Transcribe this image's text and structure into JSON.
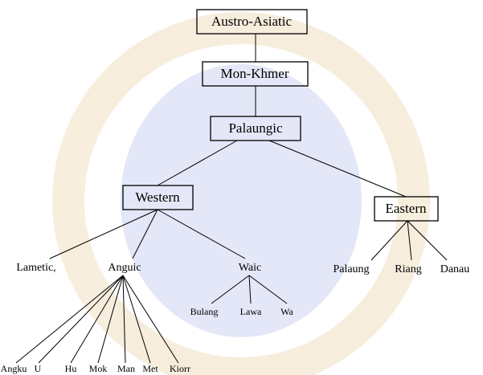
{
  "nodes": [
    {
      "label": "Austro-Asiatic"
    },
    {
      "label": "Mon-Khmer"
    },
    {
      "label": "Palaungic"
    },
    {
      "label": "Western"
    },
    {
      "label": "Eastern"
    },
    {
      "label": "Lametic,"
    },
    {
      "label": "Anguic"
    },
    {
      "label": "Waic"
    },
    {
      "label": "Palaung"
    },
    {
      "label": "Riang"
    },
    {
      "label": "Danau"
    },
    {
      "label": "Bulang"
    },
    {
      "label": "Lawa"
    },
    {
      "label": "Wa"
    },
    {
      "label": "Angku"
    },
    {
      "label": "U"
    },
    {
      "label": "Hu"
    },
    {
      "label": "Mok"
    },
    {
      "label": "Man"
    },
    {
      "label": "Met"
    },
    {
      "label": "Kiorr"
    }
  ]
}
